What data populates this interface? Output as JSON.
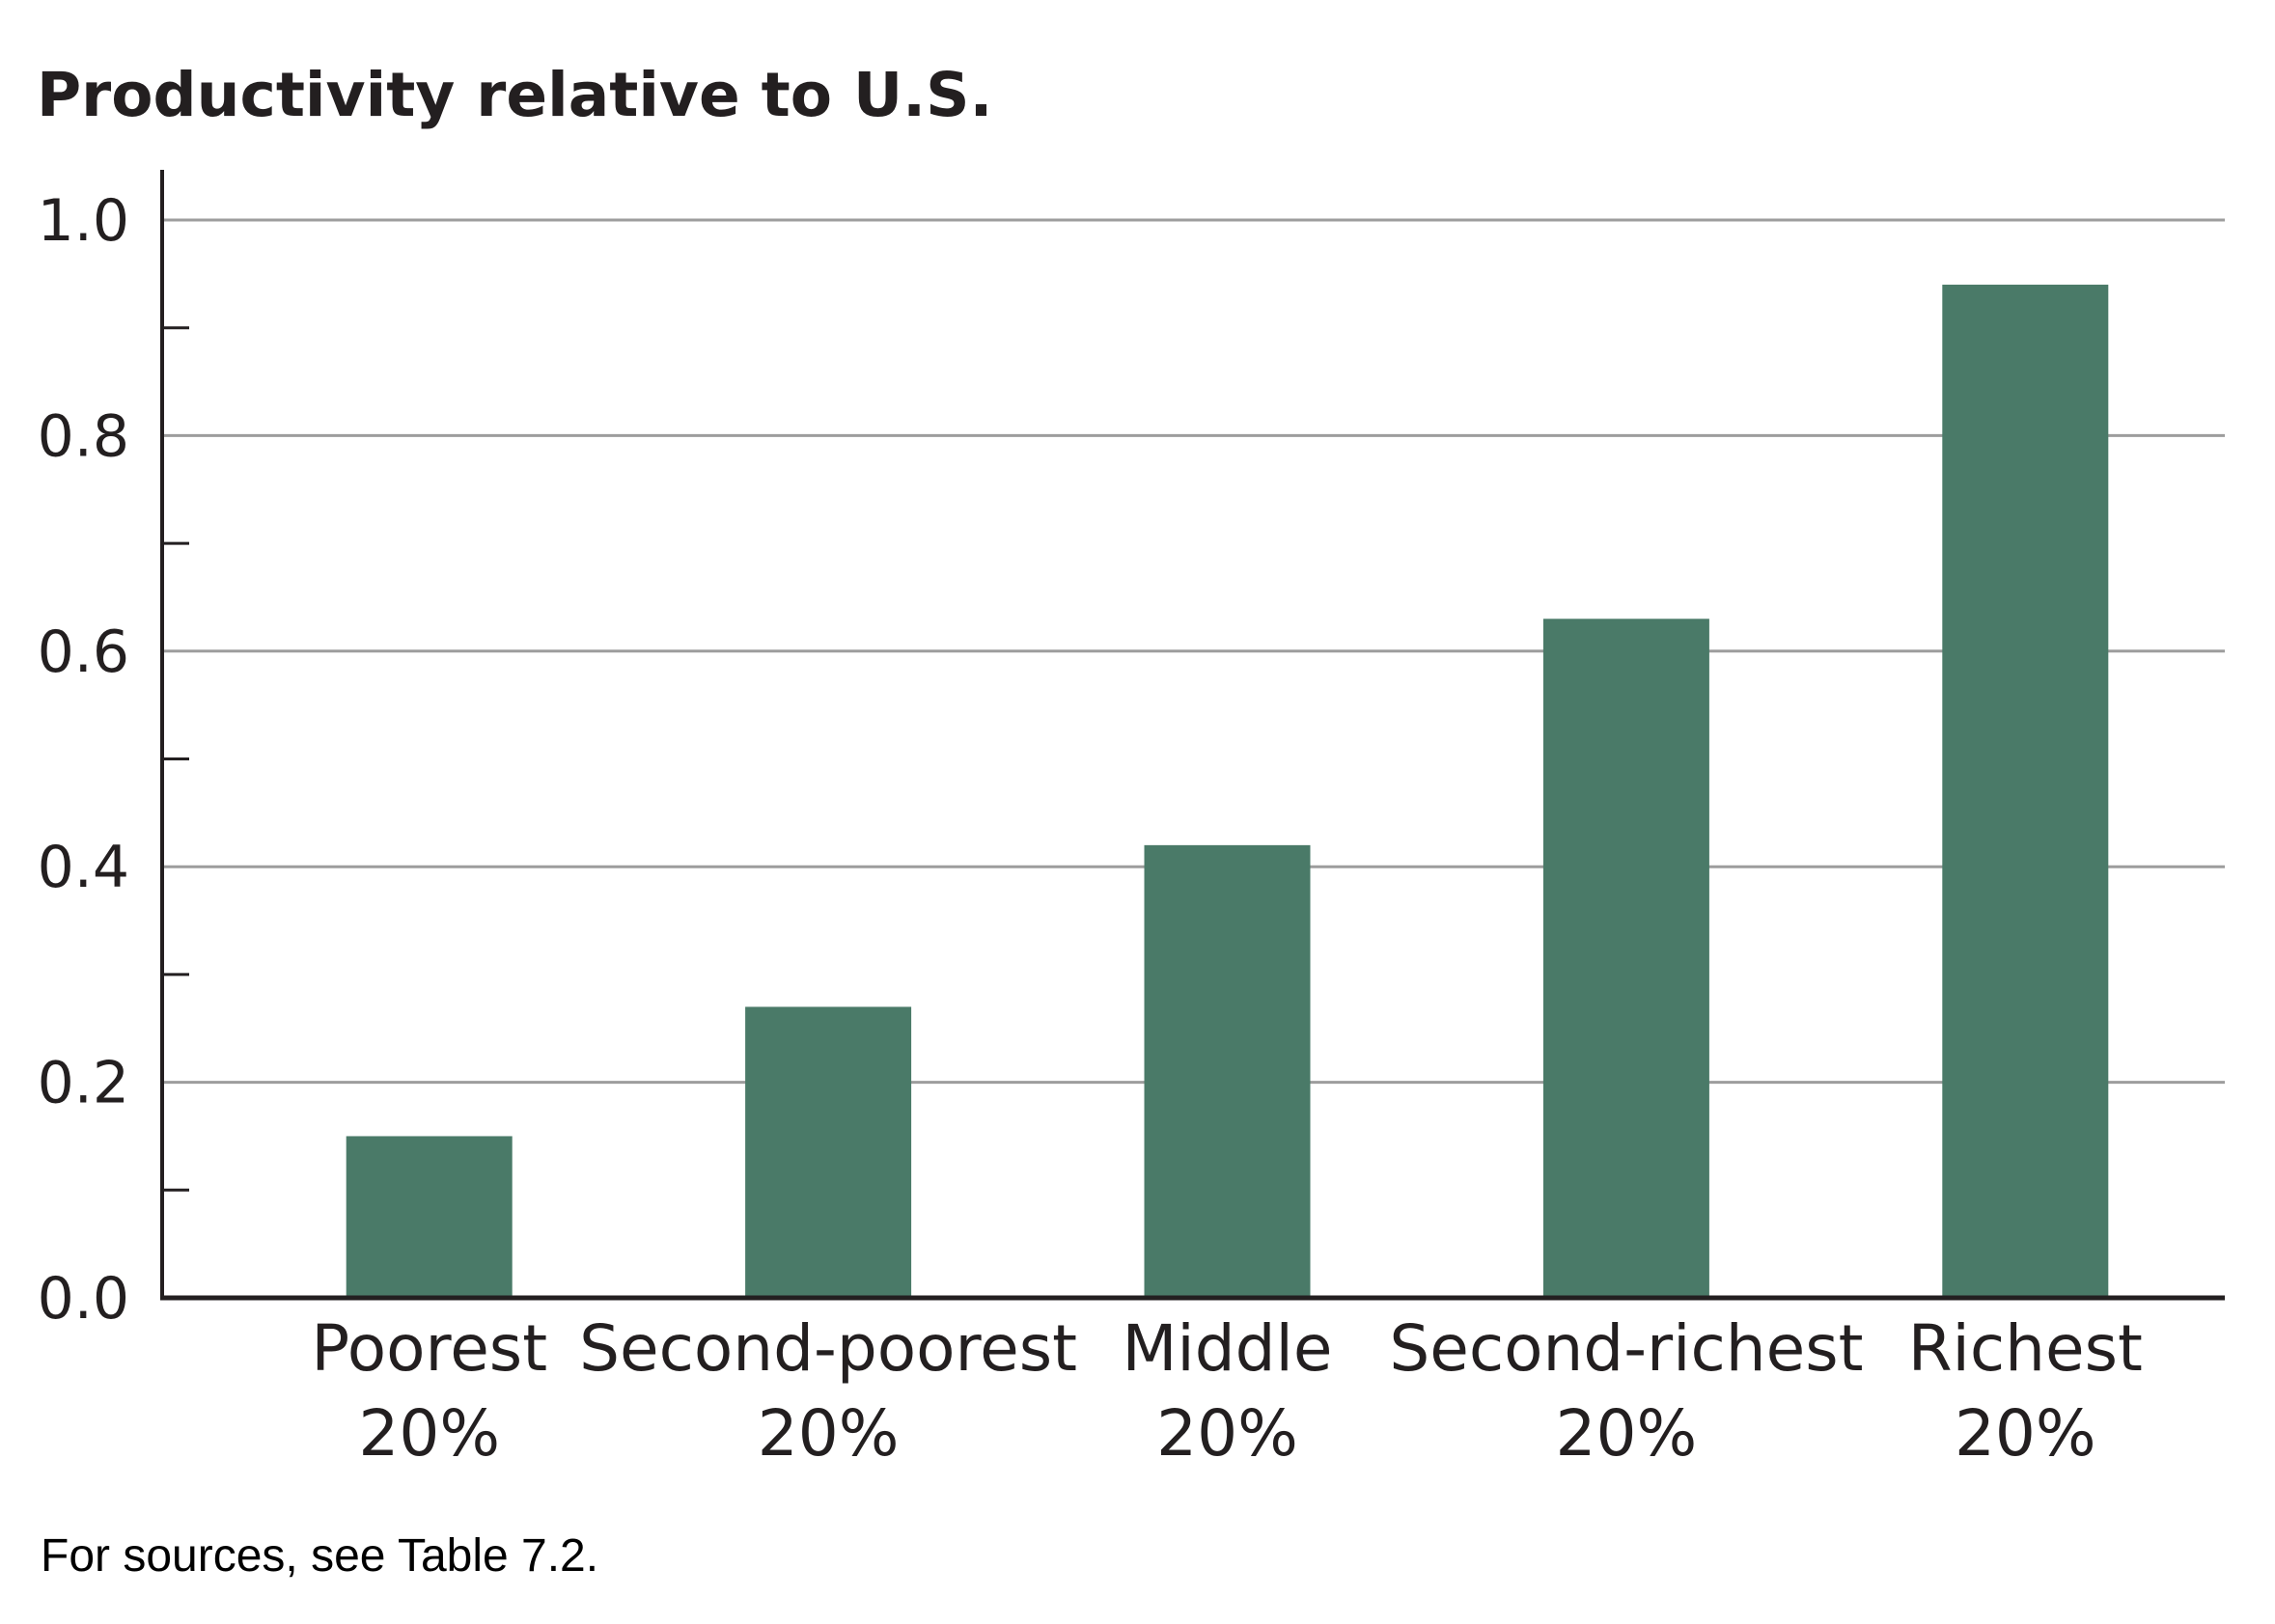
{
  "chart_data": {
    "type": "bar",
    "title": "Productivity relative to U.S.",
    "xlabel": "",
    "ylabel": "",
    "categories": [
      [
        "Poorest",
        "20%"
      ],
      [
        "Second-poorest",
        "20%"
      ],
      [
        "Middle",
        "20%"
      ],
      [
        "Second-richest",
        "20%"
      ],
      [
        "Richest",
        "20%"
      ]
    ],
    "values": [
      0.15,
      0.27,
      0.42,
      0.63,
      0.94
    ],
    "ylim": [
      0,
      1.0
    ],
    "yticks": [
      "0.0",
      "0.2",
      "0.4",
      "0.6",
      "0.8",
      "1.0"
    ],
    "minor_ticks": [
      0.1,
      0.3,
      0.5,
      0.7,
      0.9
    ],
    "grid": true,
    "legend": "none",
    "bar_color": "#4a7a68",
    "grid_color": "#9d9d9d",
    "axis_color": "#231f20"
  },
  "note": "For sources, see Table 7.2."
}
